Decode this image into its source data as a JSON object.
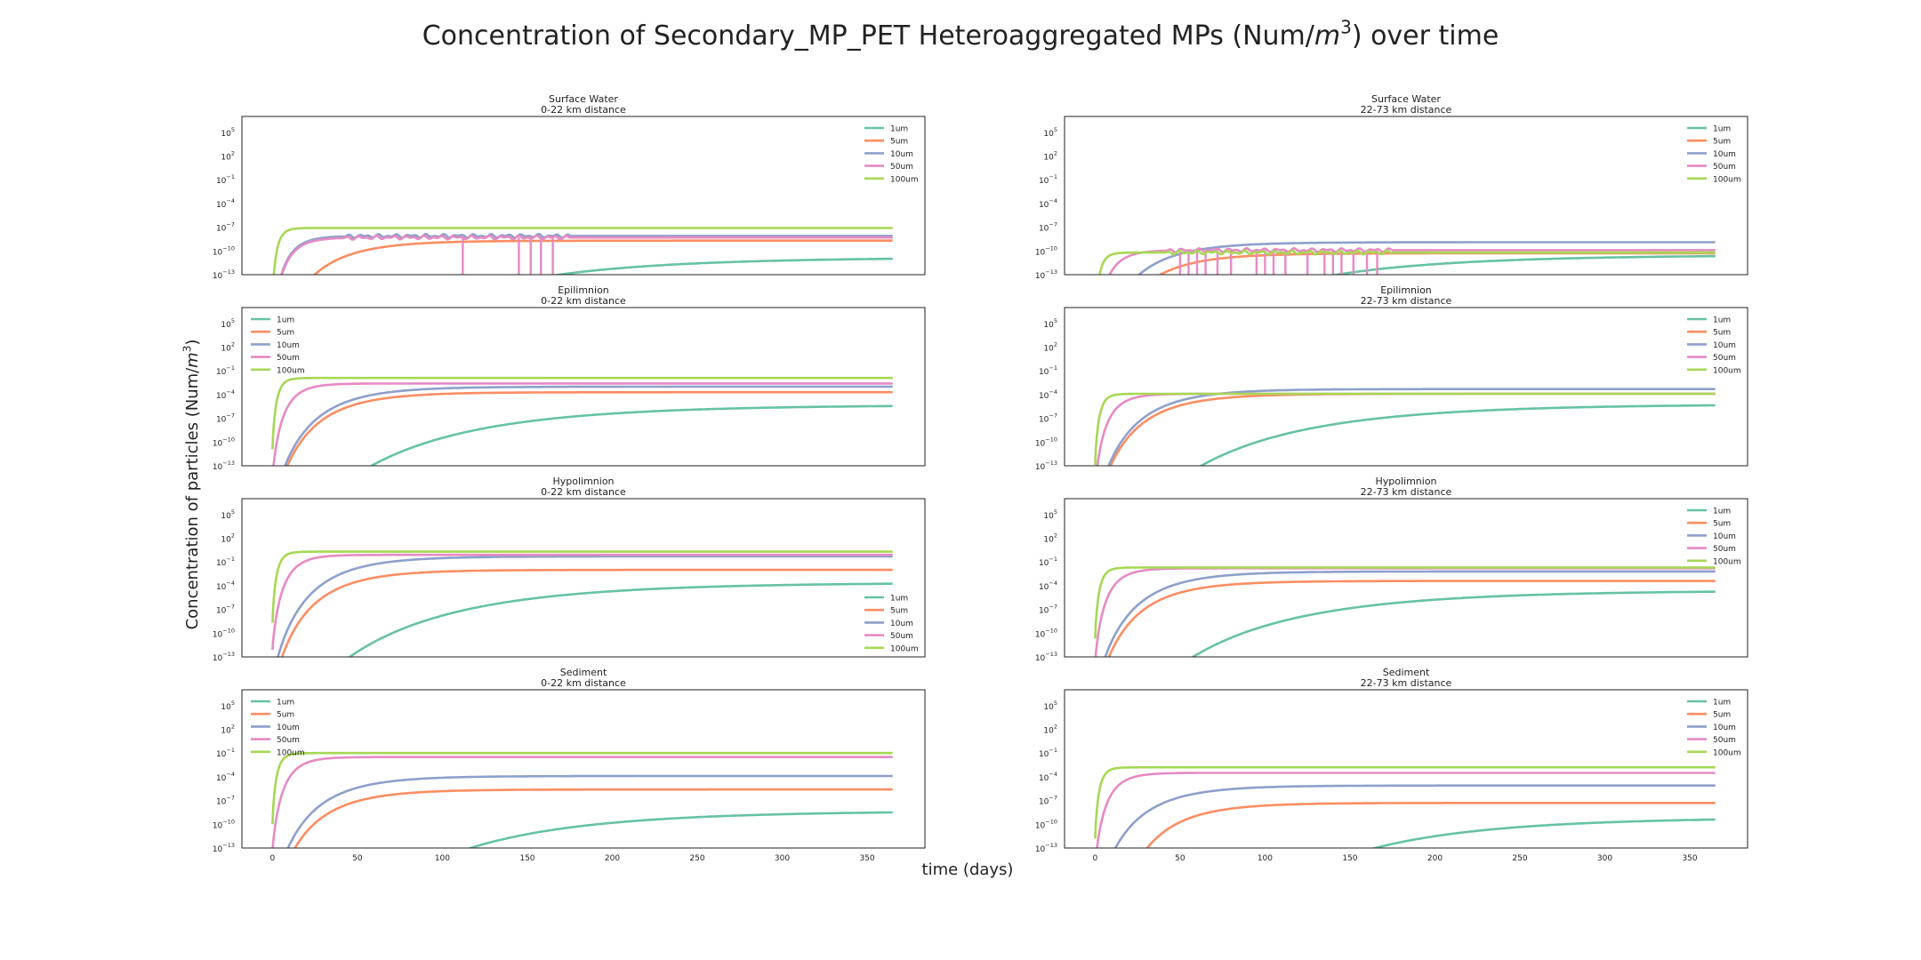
{
  "figure": {
    "title": "Concentration of Secondary_MP_PET Heteroaggregated MPs (Num/m³) over time",
    "title_parts": {
      "prefix": "Concentration of Secondary_MP_PET Heteroaggregated MPs (Num/",
      "unit_base": "m",
      "unit_exp": "3",
      "suffix": ") over time"
    },
    "ylabel_parts": {
      "prefix": "Concentration of particles (Num/",
      "unit_base": "m",
      "unit_exp": "3",
      "suffix": ")"
    },
    "xlabel": "time (days)"
  },
  "colors": {
    "1um": "#66c2a5",
    "5um": "#fc8d62",
    "10um": "#8da0cb",
    "50um": "#e78ac3",
    "100um": "#a6d854"
  },
  "chart_data": [
    {
      "type": "line",
      "title_line1": "Surface Water",
      "title_line2": "0-22 km distance",
      "yscale": "log",
      "ylim_exp": [
        -13,
        7
      ],
      "xlim": [
        -18,
        384
      ],
      "show_xticks": false,
      "legend": "top-right",
      "yticks": [
        "10^{5}",
        "10^{2}",
        "10^{-1}",
        "10^{-4}",
        "10^{-7}",
        "10^{-10}",
        "10^{-13}"
      ],
      "series": [
        {
          "name": "1um",
          "start_day": 22,
          "final_exp": -10.8,
          "shape": "slow"
        },
        {
          "name": "5um",
          "start_day": 0,
          "final_exp": -8.7,
          "shape": "mid"
        },
        {
          "name": "10um",
          "start_day": 0,
          "final_exp": -8.1,
          "shape": "fast",
          "noise": true
        },
        {
          "name": "50um",
          "start_day": 0,
          "final_exp": -8.3,
          "shape": "fast",
          "noise": true,
          "spikes": [
            112,
            145,
            152,
            158,
            165
          ]
        },
        {
          "name": "100um",
          "start_day": 0,
          "final_exp": -7.1,
          "shape": "veryfast"
        }
      ]
    },
    {
      "type": "line",
      "title_line1": "Surface Water",
      "title_line2": "22-73 km distance",
      "yscale": "log",
      "ylim_exp": [
        -13,
        7
      ],
      "xlim": [
        -18,
        384
      ],
      "show_xticks": false,
      "legend": "top-right",
      "yticks": [
        "10^{5}",
        "10^{2}",
        "10^{-1}",
        "10^{-4}",
        "10^{-7}",
        "10^{-10}",
        "10^{-13}"
      ],
      "series": [
        {
          "name": "1um",
          "start_day": 5,
          "final_exp": -10.5,
          "shape": "slow"
        },
        {
          "name": "5um",
          "start_day": 3,
          "final_exp": -10.3,
          "shape": "mid"
        },
        {
          "name": "10um",
          "start_day": 0,
          "final_exp": -8.9,
          "shape": "mid"
        },
        {
          "name": "50um",
          "start_day": 0,
          "final_exp": -9.9,
          "shape": "fast",
          "noise": true,
          "spikes": [
            50,
            55,
            60,
            65,
            72,
            80,
            95,
            100,
            105,
            112,
            125,
            135,
            140,
            145,
            152,
            160,
            166
          ]
        },
        {
          "name": "100um",
          "start_day": 0,
          "final_exp": -10.2,
          "shape": "veryfast",
          "noise": true
        }
      ]
    },
    {
      "type": "line",
      "title_line1": "Epilimnion",
      "title_line2": "0-22 km distance",
      "yscale": "log",
      "ylim_exp": [
        -13,
        7
      ],
      "xlim": [
        -18,
        384
      ],
      "show_xticks": false,
      "legend": "top-left",
      "yticks": [
        "10^{5}",
        "10^{2}",
        "10^{-1}",
        "10^{-4}",
        "10^{-7}",
        "10^{-10}",
        "10^{-13}"
      ],
      "series": [
        {
          "name": "1um",
          "start_day": 0,
          "final_exp": -5.3,
          "shape": "slow"
        },
        {
          "name": "5um",
          "start_day": 0,
          "final_exp": -3.7,
          "shape": "mid"
        },
        {
          "name": "10um",
          "start_day": 0,
          "final_exp": -3.0,
          "shape": "mid"
        },
        {
          "name": "50um",
          "start_day": 0,
          "final_exp": -2.6,
          "shape": "fast"
        },
        {
          "name": "100um",
          "start_day": 0,
          "final_exp": -1.9,
          "shape": "veryfast"
        }
      ]
    },
    {
      "type": "line",
      "title_line1": "Epilimnion",
      "title_line2": "22-73 km distance",
      "yscale": "log",
      "ylim_exp": [
        -13,
        7
      ],
      "xlim": [
        -18,
        384
      ],
      "show_xticks": false,
      "legend": "top-right",
      "yticks": [
        "10^{5}",
        "10^{2}",
        "10^{-1}",
        "10^{-4}",
        "10^{-7}",
        "10^{-10}",
        "10^{-13}"
      ],
      "series": [
        {
          "name": "1um",
          "start_day": 5,
          "final_exp": -5.2,
          "shape": "slow"
        },
        {
          "name": "5um",
          "start_day": 0,
          "final_exp": -3.9,
          "shape": "mid"
        },
        {
          "name": "10um",
          "start_day": 0,
          "final_exp": -3.3,
          "shape": "mid"
        },
        {
          "name": "50um",
          "start_day": 0,
          "final_exp": -3.9,
          "shape": "fast"
        },
        {
          "name": "100um",
          "start_day": 0,
          "final_exp": -3.9,
          "shape": "veryfast"
        }
      ]
    },
    {
      "type": "line",
      "title_line1": "Hypolimnion",
      "title_line2": "0-22 km distance",
      "yscale": "log",
      "ylim_exp": [
        -13,
        7
      ],
      "xlim": [
        -18,
        384
      ],
      "show_xticks": false,
      "legend": "bottom-right",
      "yticks": [
        "10^{5}",
        "10^{2}",
        "10^{-1}",
        "10^{-4}",
        "10^{-7}",
        "10^{-10}",
        "10^{-13}"
      ],
      "series": [
        {
          "name": "1um",
          "start_day": 0,
          "final_exp": -3.6,
          "shape": "slow"
        },
        {
          "name": "5um",
          "start_day": 0,
          "final_exp": -2.0,
          "shape": "mid"
        },
        {
          "name": "10um",
          "start_day": 0,
          "final_exp": -0.3,
          "shape": "mid"
        },
        {
          "name": "50um",
          "start_day": 0,
          "final_exp": -0.1,
          "shape": "fast"
        },
        {
          "name": "100um",
          "start_day": 0,
          "final_exp": 0.3,
          "shape": "veryfast"
        }
      ]
    },
    {
      "type": "line",
      "title_line1": "Hypolimnion",
      "title_line2": "22-73 km distance",
      "yscale": "log",
      "ylim_exp": [
        -13,
        7
      ],
      "xlim": [
        -18,
        384
      ],
      "show_xticks": false,
      "legend": "top-right",
      "yticks": [
        "10^{5}",
        "10^{2}",
        "10^{-1}",
        "10^{-4}",
        "10^{-7}",
        "10^{-10}",
        "10^{-13}"
      ],
      "series": [
        {
          "name": "1um",
          "start_day": 5,
          "final_exp": -4.6,
          "shape": "slow"
        },
        {
          "name": "5um",
          "start_day": 0,
          "final_exp": -3.4,
          "shape": "mid"
        },
        {
          "name": "10um",
          "start_day": 0,
          "final_exp": -2.2,
          "shape": "mid"
        },
        {
          "name": "50um",
          "start_day": 0,
          "final_exp": -1.8,
          "shape": "fast"
        },
        {
          "name": "100um",
          "start_day": 0,
          "final_exp": -1.7,
          "shape": "veryfast"
        }
      ]
    },
    {
      "type": "line",
      "title_line1": "Sediment",
      "title_line2": "0-22 km distance",
      "yscale": "log",
      "ylim_exp": [
        -13,
        7
      ],
      "xlim": [
        -18,
        384
      ],
      "show_xticks": true,
      "legend": "top-left",
      "xticks": [
        0,
        50,
        100,
        150,
        200,
        250,
        300,
        350
      ],
      "yticks": [
        "10^{5}",
        "10^{2}",
        "10^{-1}",
        "10^{-4}",
        "10^{-7}",
        "10^{-10}",
        "10^{-13}"
      ],
      "series": [
        {
          "name": "1um",
          "start_day": 25,
          "final_exp": -8.3,
          "shape": "slow"
        },
        {
          "name": "5um",
          "start_day": 0,
          "final_exp": -5.6,
          "shape": "mid"
        },
        {
          "name": "10um",
          "start_day": 0,
          "final_exp": -3.9,
          "shape": "mid"
        },
        {
          "name": "50um",
          "start_day": 0,
          "final_exp": -1.5,
          "shape": "fast"
        },
        {
          "name": "100um",
          "start_day": 0,
          "final_exp": -1.0,
          "shape": "veryfast"
        }
      ]
    },
    {
      "type": "line",
      "title_line1": "Sediment",
      "title_line2": "22-73 km distance",
      "yscale": "log",
      "ylim_exp": [
        -13,
        7
      ],
      "xlim": [
        -18,
        384
      ],
      "show_xticks": true,
      "legend": "top-right",
      "xticks": [
        0,
        50,
        100,
        150,
        200,
        250,
        300,
        350
      ],
      "yticks": [
        "10^{5}",
        "10^{2}",
        "10^{-1}",
        "10^{-4}",
        "10^{-7}",
        "10^{-10}",
        "10^{-13}"
      ],
      "series": [
        {
          "name": "1um",
          "start_day": 60,
          "final_exp": -9.1,
          "shape": "slow"
        },
        {
          "name": "5um",
          "start_day": 12,
          "final_exp": -7.3,
          "shape": "mid"
        },
        {
          "name": "10um",
          "start_day": 0,
          "final_exp": -5.1,
          "shape": "mid"
        },
        {
          "name": "50um",
          "start_day": 0,
          "final_exp": -3.5,
          "shape": "fast"
        },
        {
          "name": "100um",
          "start_day": 0,
          "final_exp": -2.8,
          "shape": "veryfast"
        }
      ]
    }
  ]
}
